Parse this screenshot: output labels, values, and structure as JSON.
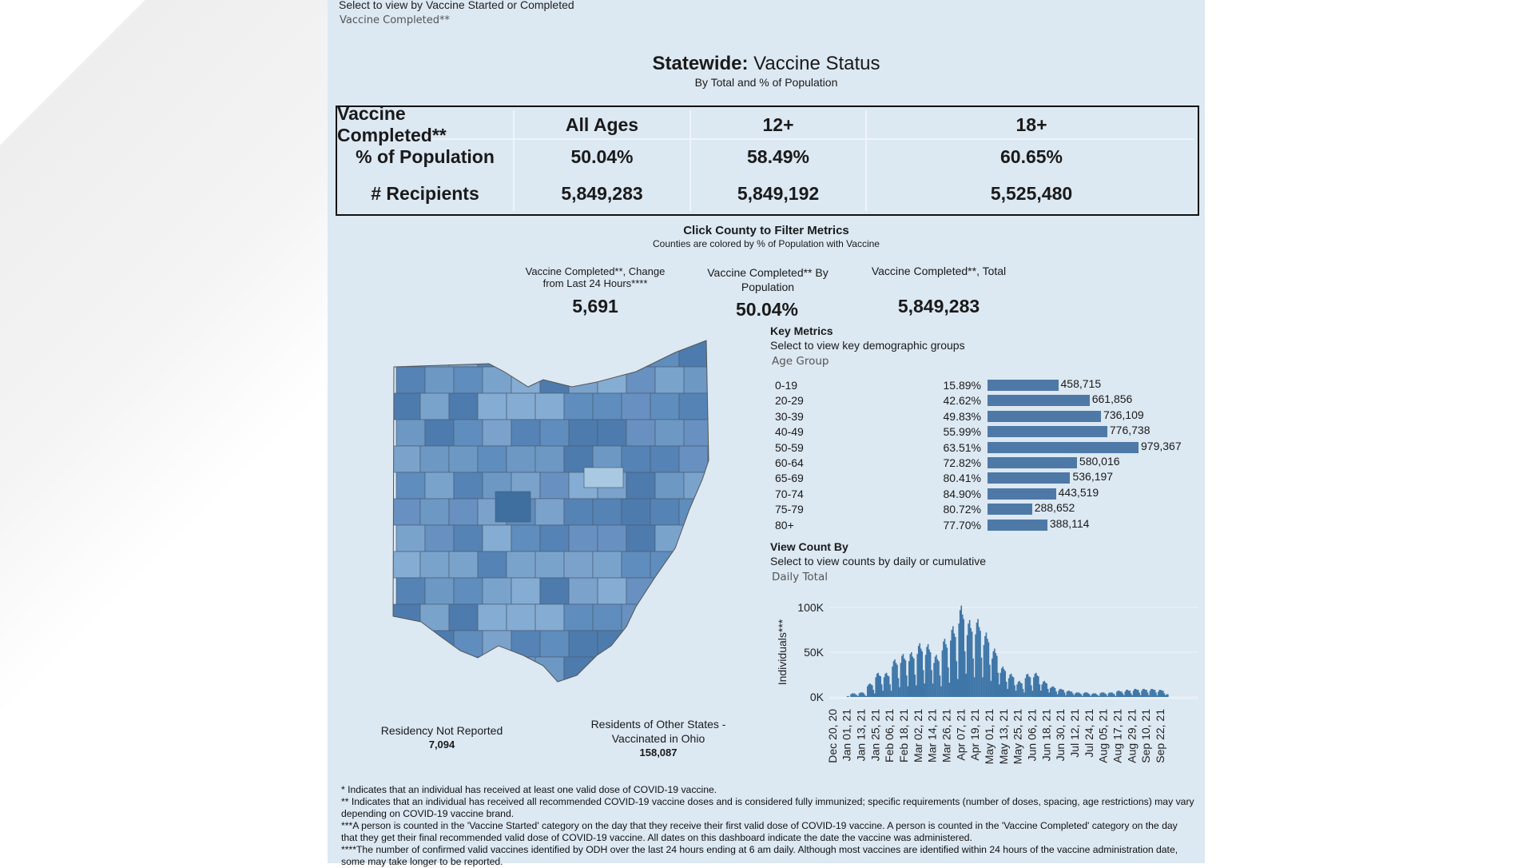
{
  "selector": {
    "label": "Select to view by Vaccine Started or Completed",
    "value": "Vaccine Completed**"
  },
  "header": {
    "title_bold": "Statewide:",
    "title_rest": " Vaccine Status",
    "subtitle": "By Total and % of Population"
  },
  "summary_table": {
    "corner": "Vaccine Completed**",
    "columns": [
      "All Ages",
      "12+",
      "18+"
    ],
    "rows": [
      {
        "label": "% of Population",
        "values": [
          "50.04%",
          "58.49%",
          "60.65%"
        ]
      },
      {
        "label": "# Recipients",
        "values": [
          "5,849,283",
          "5,849,192",
          "5,525,480"
        ]
      }
    ]
  },
  "county_section": {
    "title": "Click County to Filter Metrics",
    "subtitle": "Counties are colored by % of Population with Vaccine"
  },
  "metrics": [
    {
      "label": "Vaccine Completed**, Change from Last 24 Hours****",
      "value": "5,691"
    },
    {
      "label": "Vaccine Completed** By Population",
      "value": "50.04%"
    },
    {
      "label": "Vaccine Completed**, Total",
      "value": "5,849,283"
    }
  ],
  "map": {
    "colors": {
      "light": "#a9c9e2",
      "mid": "#6d98c4",
      "dark": "#3f6f9f"
    }
  },
  "residency": {
    "not_reported": {
      "label": "Residency Not Reported",
      "value": "7,094"
    },
    "other_states": {
      "label": "Residents of Other States - Vaccinated in Ohio",
      "value": "158,087"
    }
  },
  "key_metrics": {
    "title": "Key Metrics",
    "subtitle": "Select to view key demographic groups",
    "selected": "Age Group",
    "bar_color": "#4e79a7",
    "rows": [
      {
        "age": "0-19",
        "pct": "15.89%",
        "count": 458715,
        "count_label": "458,715"
      },
      {
        "age": "20-29",
        "pct": "42.62%",
        "count": 661856,
        "count_label": "661,856"
      },
      {
        "age": "30-39",
        "pct": "49.83%",
        "count": 736109,
        "count_label": "736,109"
      },
      {
        "age": "40-49",
        "pct": "55.99%",
        "count": 776738,
        "count_label": "776,738"
      },
      {
        "age": "50-59",
        "pct": "63.51%",
        "count": 979367,
        "count_label": "979,367"
      },
      {
        "age": "60-64",
        "pct": "72.82%",
        "count": 580016,
        "count_label": "580,016"
      },
      {
        "age": "65-69",
        "pct": "80.41%",
        "count": 536197,
        "count_label": "536,197"
      },
      {
        "age": "70-74",
        "pct": "84.90%",
        "count": 443519,
        "count_label": "443,519"
      },
      {
        "age": "75-79",
        "pct": "80.72%",
        "count": 288652,
        "count_label": "288,652"
      },
      {
        "age": "80+",
        "pct": "77.70%",
        "count": 388114,
        "count_label": "388,114"
      }
    ]
  },
  "view_count": {
    "title": "View Count By",
    "subtitle": "Select to view counts by daily or cumulative",
    "selected": "Daily Total"
  },
  "chart_data": {
    "type": "bar",
    "ylabel": "Individuals***",
    "ylim": [
      0,
      105
    ],
    "yticks": [
      "0K",
      "50K",
      "100K"
    ],
    "ytick_values": [
      0,
      50,
      100
    ],
    "color": "#3e76a8",
    "grid": true,
    "first_date": "2020-12-14",
    "x_tick_labels": [
      "Dec 20, 20",
      "Jan 01, 21",
      "Jan 13, 21",
      "Jan 25, 21",
      "Feb 06, 21",
      "Feb 18, 21",
      "Mar 02, 21",
      "Mar 14, 21",
      "Mar 26, 21",
      "Apr 07, 21",
      "Apr 19, 21",
      "May 01, 21",
      "May 13, 21",
      "May 25, 21",
      "Jun 06, 21",
      "Jun 18, 21",
      "Jun 30, 21",
      "Jul 12, 21",
      "Jul 24, 21",
      "Aug 05, 21",
      "Aug 17, 21",
      "Aug 29, 21",
      "Sep 10, 21",
      "Sep 22, 21"
    ],
    "daily_values_k": [
      0,
      0,
      0,
      0,
      0,
      0,
      0,
      0,
      0,
      0,
      0,
      0,
      0,
      0,
      0,
      0,
      0,
      0,
      1,
      1,
      0,
      3,
      4,
      4,
      4,
      3,
      2,
      1,
      4,
      5,
      5,
      5,
      4,
      2,
      1,
      12,
      14,
      15,
      14,
      13,
      8,
      4,
      22,
      26,
      27,
      24,
      23,
      14,
      7,
      22,
      26,
      27,
      24,
      23,
      14,
      7,
      34,
      40,
      42,
      38,
      36,
      21,
      11,
      38,
      46,
      48,
      43,
      41,
      24,
      12,
      40,
      48,
      50,
      45,
      43,
      25,
      13,
      48,
      57,
      60,
      54,
      51,
      30,
      15,
      47,
      56,
      59,
      53,
      50,
      30,
      15,
      38,
      45,
      47,
      42,
      40,
      24,
      12,
      52,
      62,
      65,
      59,
      55,
      33,
      16,
      63,
      75,
      79,
      71,
      67,
      40,
      20,
      82,
      97,
      102,
      92,
      87,
      51,
      26,
      69,
      82,
      86,
      77,
      73,
      43,
      22,
      70,
      83,
      87,
      78,
      74,
      44,
      22,
      58,
      68,
      72,
      65,
      61,
      36,
      18,
      43,
      51,
      54,
      49,
      46,
      27,
      14,
      27,
      32,
      34,
      31,
      29,
      17,
      9,
      21,
      25,
      26,
      23,
      22,
      13,
      7,
      14,
      17,
      18,
      16,
      15,
      9,
      5,
      21,
      25,
      26,
      23,
      22,
      13,
      7,
      22,
      26,
      27,
      24,
      23,
      14,
      7,
      14,
      17,
      18,
      16,
      15,
      9,
      5,
      10,
      11,
      12,
      11,
      10,
      6,
      3,
      7,
      9,
      9,
      8,
      8,
      5,
      2,
      6,
      7,
      7,
      6,
      6,
      4,
      2,
      4,
      5,
      5,
      5,
      4,
      3,
      1,
      4,
      5,
      5,
      5,
      4,
      3,
      1,
      3,
      4,
      4,
      4,
      3,
      2,
      1,
      4,
      5,
      5,
      5,
      4,
      3,
      1,
      4,
      5,
      5,
      5,
      4,
      3,
      1,
      6,
      7,
      7,
      6,
      6,
      4,
      2,
      6,
      8,
      8,
      7,
      7,
      4,
      2,
      7,
      9,
      9,
      8,
      8,
      5,
      2,
      7,
      9,
      9,
      8,
      8,
      5,
      2,
      7,
      9,
      9,
      8,
      8,
      5,
      2,
      6,
      8,
      8,
      7,
      7,
      4,
      2,
      3,
      3
    ]
  },
  "footnotes": [
    "* Indicates that an individual has received at least one valid dose of COVID-19 vaccine.",
    "** Indicates that an individual has received all recommended COVID-19 vaccine doses and is considered fully immunized; specific requirements (number of doses, spacing, age restrictions) may vary depending on COVID-19 vaccine brand.",
    "***A person is counted in the 'Vaccine Started' category on the day that they receive their first valid dose of COVID-19 vaccine.  A person is counted in the 'Vaccine Completed' category on the day that they get their final recommended valid dose of COVID-19 vaccine. All dates on this dashboard indicate the date the vaccine was administered.",
    "****The number of confirmed valid vaccines identified by ODH over the last 24 hours ending at 6 am daily. Although most vaccines are identified within 24 hours of the vaccine administration date, some may take longer to be reported."
  ]
}
